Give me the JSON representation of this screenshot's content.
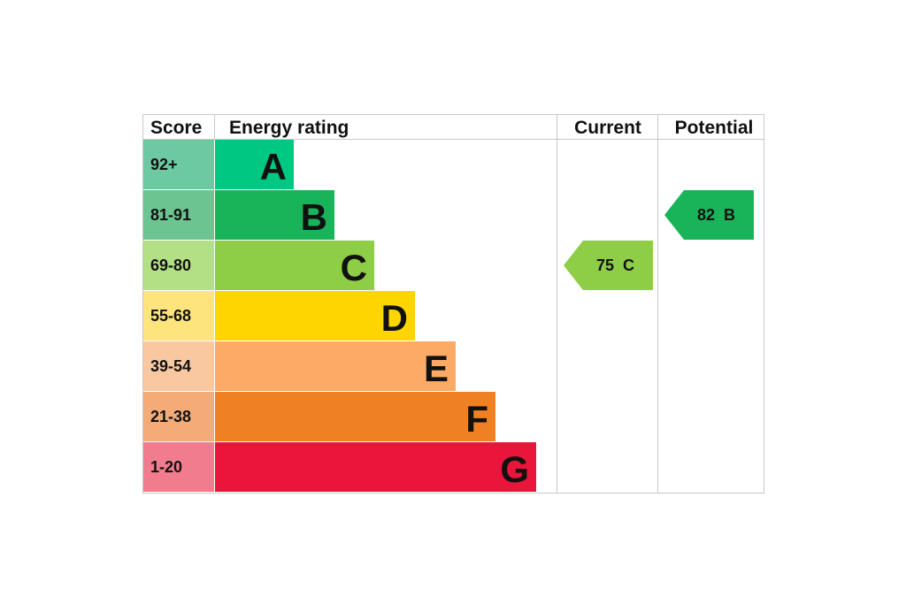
{
  "headers": {
    "score": "Score",
    "energy_rating": "Energy rating",
    "current": "Current",
    "potential": "Potential"
  },
  "chart_data": {
    "type": "bar",
    "bands": [
      {
        "letter": "A",
        "range": "92+",
        "score_color": "#6cc9a1",
        "bar_color": "#00c781"
      },
      {
        "letter": "B",
        "range": "81-91",
        "score_color": "#6cc490",
        "bar_color": "#19b459"
      },
      {
        "letter": "C",
        "range": "69-80",
        "score_color": "#b3df85",
        "bar_color": "#8dce46"
      },
      {
        "letter": "D",
        "range": "55-68",
        "score_color": "#fde47c",
        "bar_color": "#ffd500"
      },
      {
        "letter": "E",
        "range": "39-54",
        "score_color": "#f9c8a0",
        "bar_color": "#fcaa65"
      },
      {
        "letter": "F",
        "range": "21-38",
        "score_color": "#f3ac77",
        "bar_color": "#ef8023"
      },
      {
        "letter": "G",
        "range": "1-20",
        "score_color": "#f07c8d",
        "bar_color": "#e9153b"
      }
    ],
    "current": {
      "value": 75,
      "band": "C",
      "label": "75  C",
      "color": "#8dce46"
    },
    "potential": {
      "value": 82,
      "band": "B",
      "label": "82  B",
      "color": "#19b459"
    }
  },
  "colors": {
    "border": "#c8c8c8",
    "text": "#111111"
  }
}
